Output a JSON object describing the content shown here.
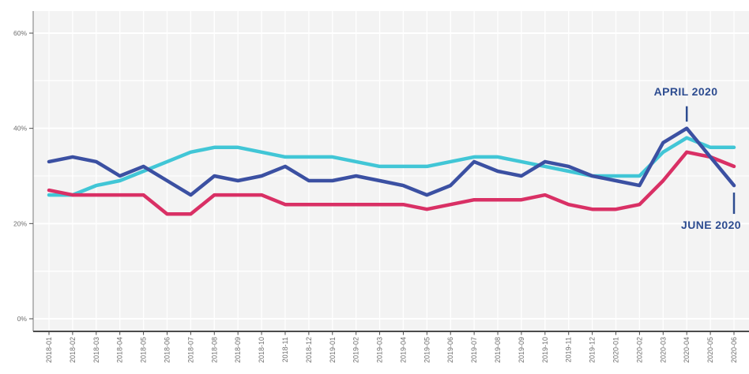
{
  "chart_data": {
    "type": "line",
    "title": "",
    "xlabel": "",
    "ylabel": "",
    "x": [
      "2018-01",
      "2018-02",
      "2018-03",
      "2018-04",
      "2018-05",
      "2018-06",
      "2018-07",
      "2018-08",
      "2018-09",
      "2018-10",
      "2018-11",
      "2018-12",
      "2019-01",
      "2019-02",
      "2019-03",
      "2019-04",
      "2019-05",
      "2019-06",
      "2019-07",
      "2019-08",
      "2019-09",
      "2019-10",
      "2019-11",
      "2019-12",
      "2020-01",
      "2020-02",
      "2020-03",
      "2020-04",
      "2020-05",
      "2020-06"
    ],
    "series": [
      {
        "name": "cyan",
        "color": "#41C6D6",
        "values": [
          26,
          26,
          28,
          29,
          31,
          33,
          35,
          36,
          36,
          35,
          34,
          34,
          34,
          33,
          32,
          32,
          32,
          33,
          34,
          34,
          33,
          32,
          31,
          30,
          30,
          30,
          35,
          38,
          36,
          36
        ]
      },
      {
        "name": "pink",
        "color": "#D93065",
        "values": [
          27,
          26,
          26,
          26,
          26,
          22,
          22,
          26,
          26,
          26,
          24,
          24,
          24,
          24,
          24,
          24,
          23,
          24,
          25,
          25,
          25,
          26,
          24,
          23,
          23,
          24,
          29,
          35,
          34,
          32
        ]
      },
      {
        "name": "dark-blue",
        "color": "#3B50A2",
        "values": [
          33,
          34,
          33,
          30,
          32,
          29,
          26,
          30,
          29,
          30,
          32,
          29,
          29,
          30,
          29,
          28,
          26,
          28,
          33,
          31,
          30,
          33,
          32,
          30,
          29,
          28,
          37,
          40,
          34,
          28
        ]
      }
    ],
    "y_tick_labels": [
      "0%",
      "20%",
      "40%",
      "60%"
    ],
    "y_tick_values": [
      0,
      20,
      40,
      60
    ],
    "ylim": [
      -2.7,
      64.6
    ],
    "grid": true,
    "legend": "none",
    "annotations": [
      {
        "text": "APRIL 2020",
        "target_x": "2020-04",
        "target_series": "dark-blue",
        "target_value": 40,
        "position": "above"
      },
      {
        "text": "JUNE 2020",
        "target_x": "2020-06",
        "target_series": "dark-blue",
        "target_value": 28,
        "position": "below"
      }
    ],
    "colors": {
      "plot_bg": "#F3F3F3",
      "grid": "#FFFFFF",
      "annotation": "#2D4C90",
      "axis_line_left": "#A3A3A3",
      "axis_line_bottom": "#4B4B4B",
      "tick_label": "#6E6E6E"
    }
  }
}
